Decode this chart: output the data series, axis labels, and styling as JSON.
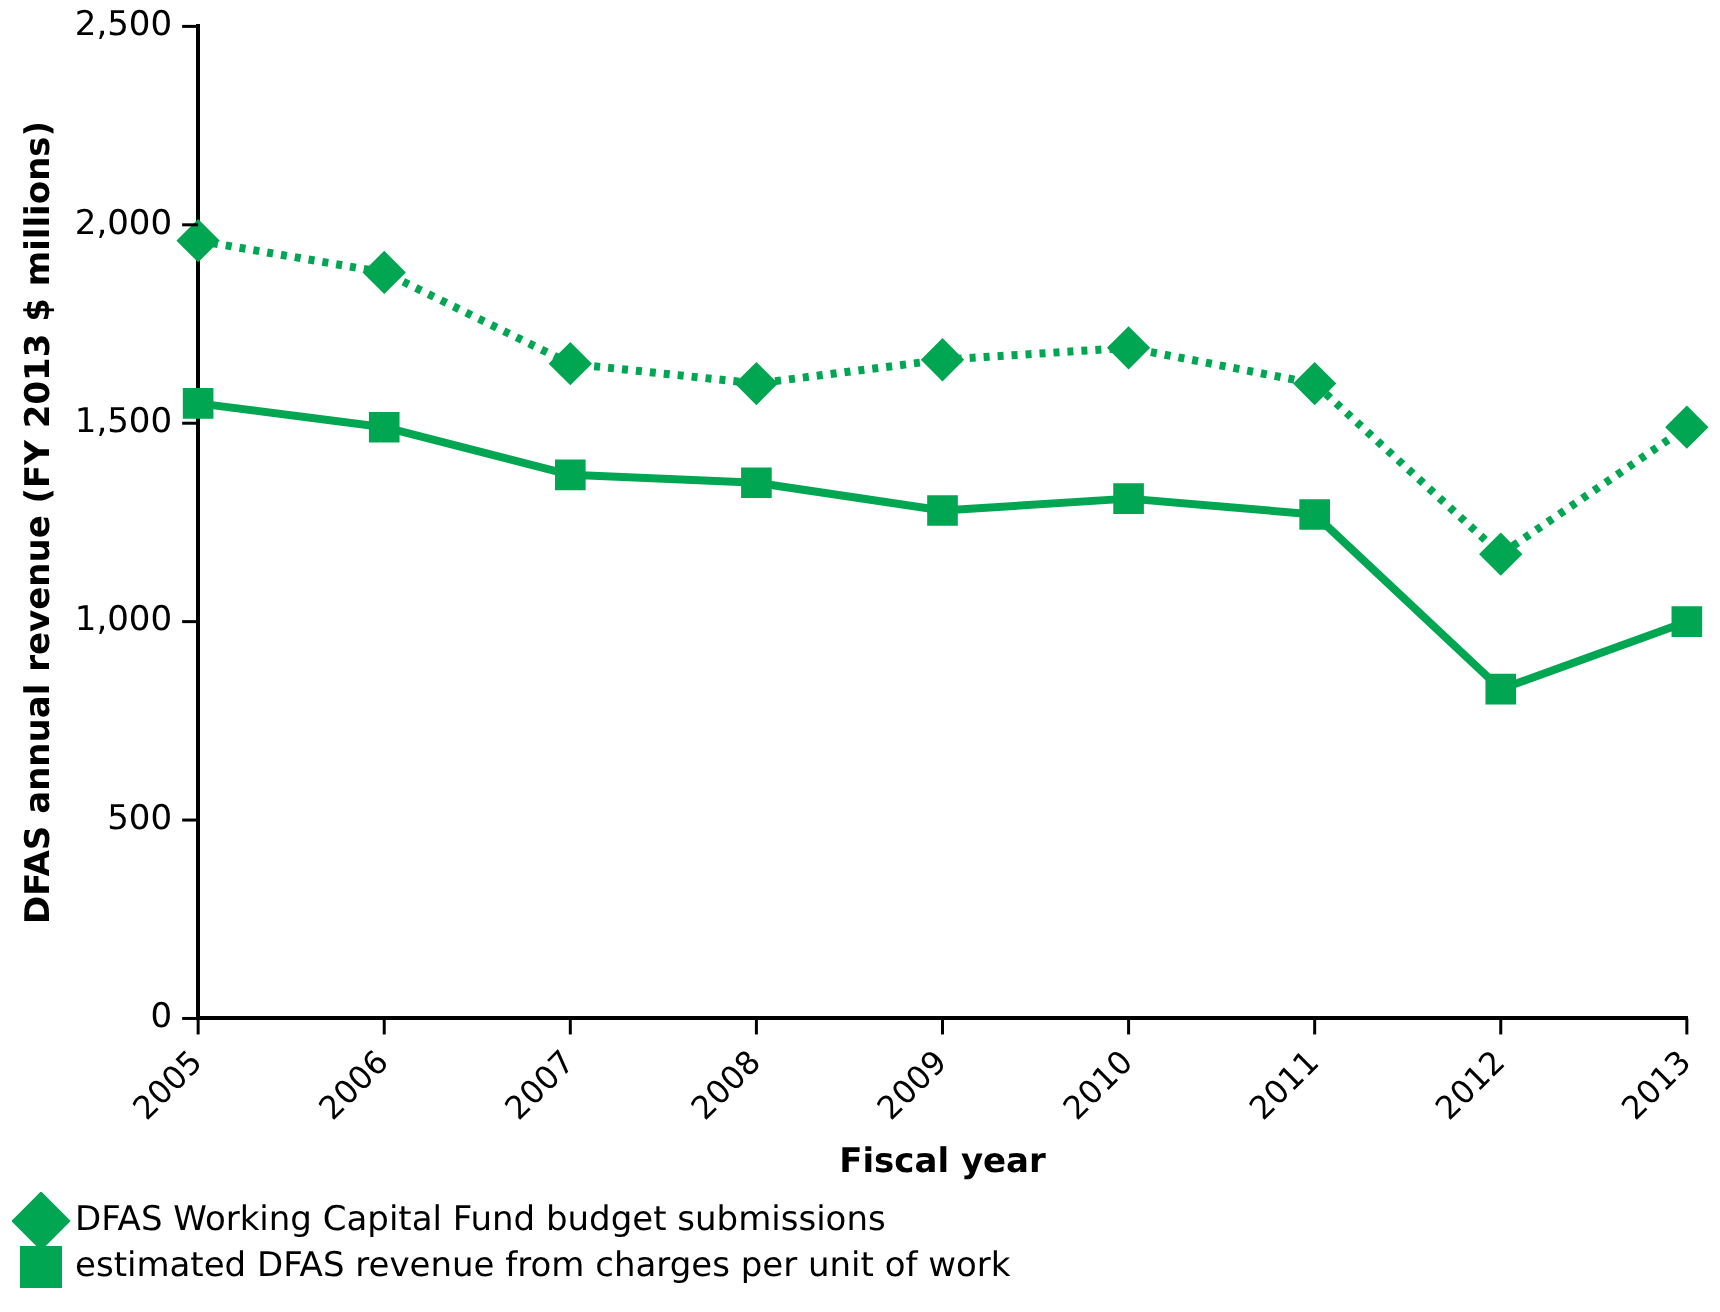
{
  "chart_data": {
    "type": "line",
    "xlabel": "Fiscal year",
    "ylabel": "DFAS annual revenue (FY 2013 $ millions)",
    "categories": [
      "2005",
      "2006",
      "2007",
      "2008",
      "2009",
      "2010",
      "2011",
      "2012",
      "2013"
    ],
    "series": [
      {
        "name": "DFAS Working Capital Fund budget submissions",
        "color": "#00a651",
        "marker": "diamond",
        "line_style": "dotted",
        "values": [
          1960,
          1880,
          1650,
          1600,
          1660,
          1690,
          1600,
          1170,
          1490
        ]
      },
      {
        "name": "estimated DFAS revenue from charges per unit of work",
        "color": "#00a651",
        "marker": "square",
        "line_style": "solid",
        "values": [
          1550,
          1490,
          1370,
          1350,
          1280,
          1310,
          1270,
          830,
          1000
        ]
      }
    ],
    "ylim": [
      0,
      2500
    ],
    "yticks": [
      {
        "value": 0,
        "label": "0"
      },
      {
        "value": 500,
        "label": "500"
      },
      {
        "value": 1000,
        "label": "1,000"
      },
      {
        "value": 1500,
        "label": "1,500"
      },
      {
        "value": 2000,
        "label": "2,000"
      },
      {
        "value": 2500,
        "label": "2,500"
      }
    ],
    "grid": false,
    "legend": "bottom"
  }
}
